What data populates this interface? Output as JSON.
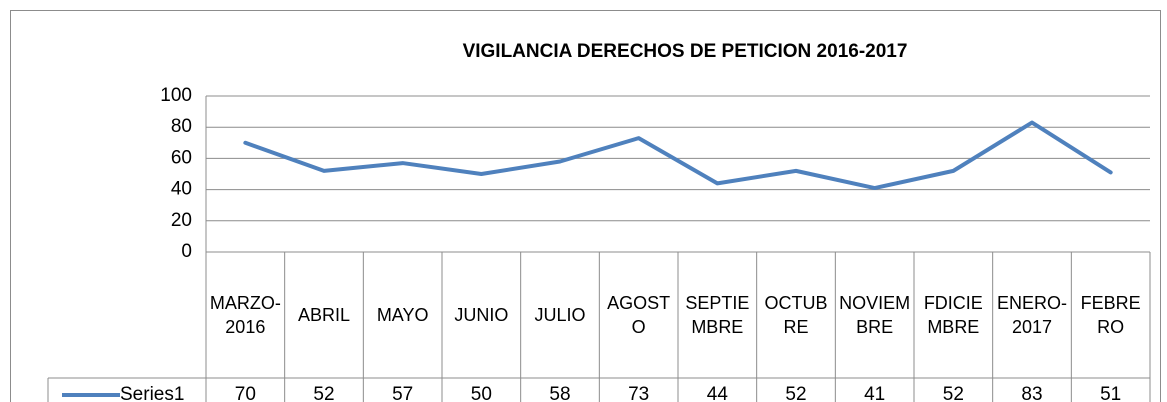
{
  "chart_data": {
    "type": "line",
    "title": "VIGILANCIA DERECHOS DE PETICION 2016-2017",
    "categories": [
      "MARZO-2016",
      "ABRIL",
      "MAYO",
      "JUNIO",
      "JULIO",
      "AGOSTO",
      "SEPTIEMBRE",
      "OCTUBRE",
      "NOVIEMBRE",
      "FDICIEMBRE",
      "ENERO-2017",
      "FEBRERO"
    ],
    "series": [
      {
        "name": "Series1",
        "color": "#4f81bd",
        "values": [
          70,
          52,
          57,
          50,
          58,
          73,
          44,
          52,
          41,
          52,
          83,
          51
        ]
      }
    ],
    "ylim": [
      0,
      100
    ],
    "yticks": [
      0,
      20,
      40,
      60,
      80,
      100
    ],
    "grid": true,
    "legend": "table"
  }
}
